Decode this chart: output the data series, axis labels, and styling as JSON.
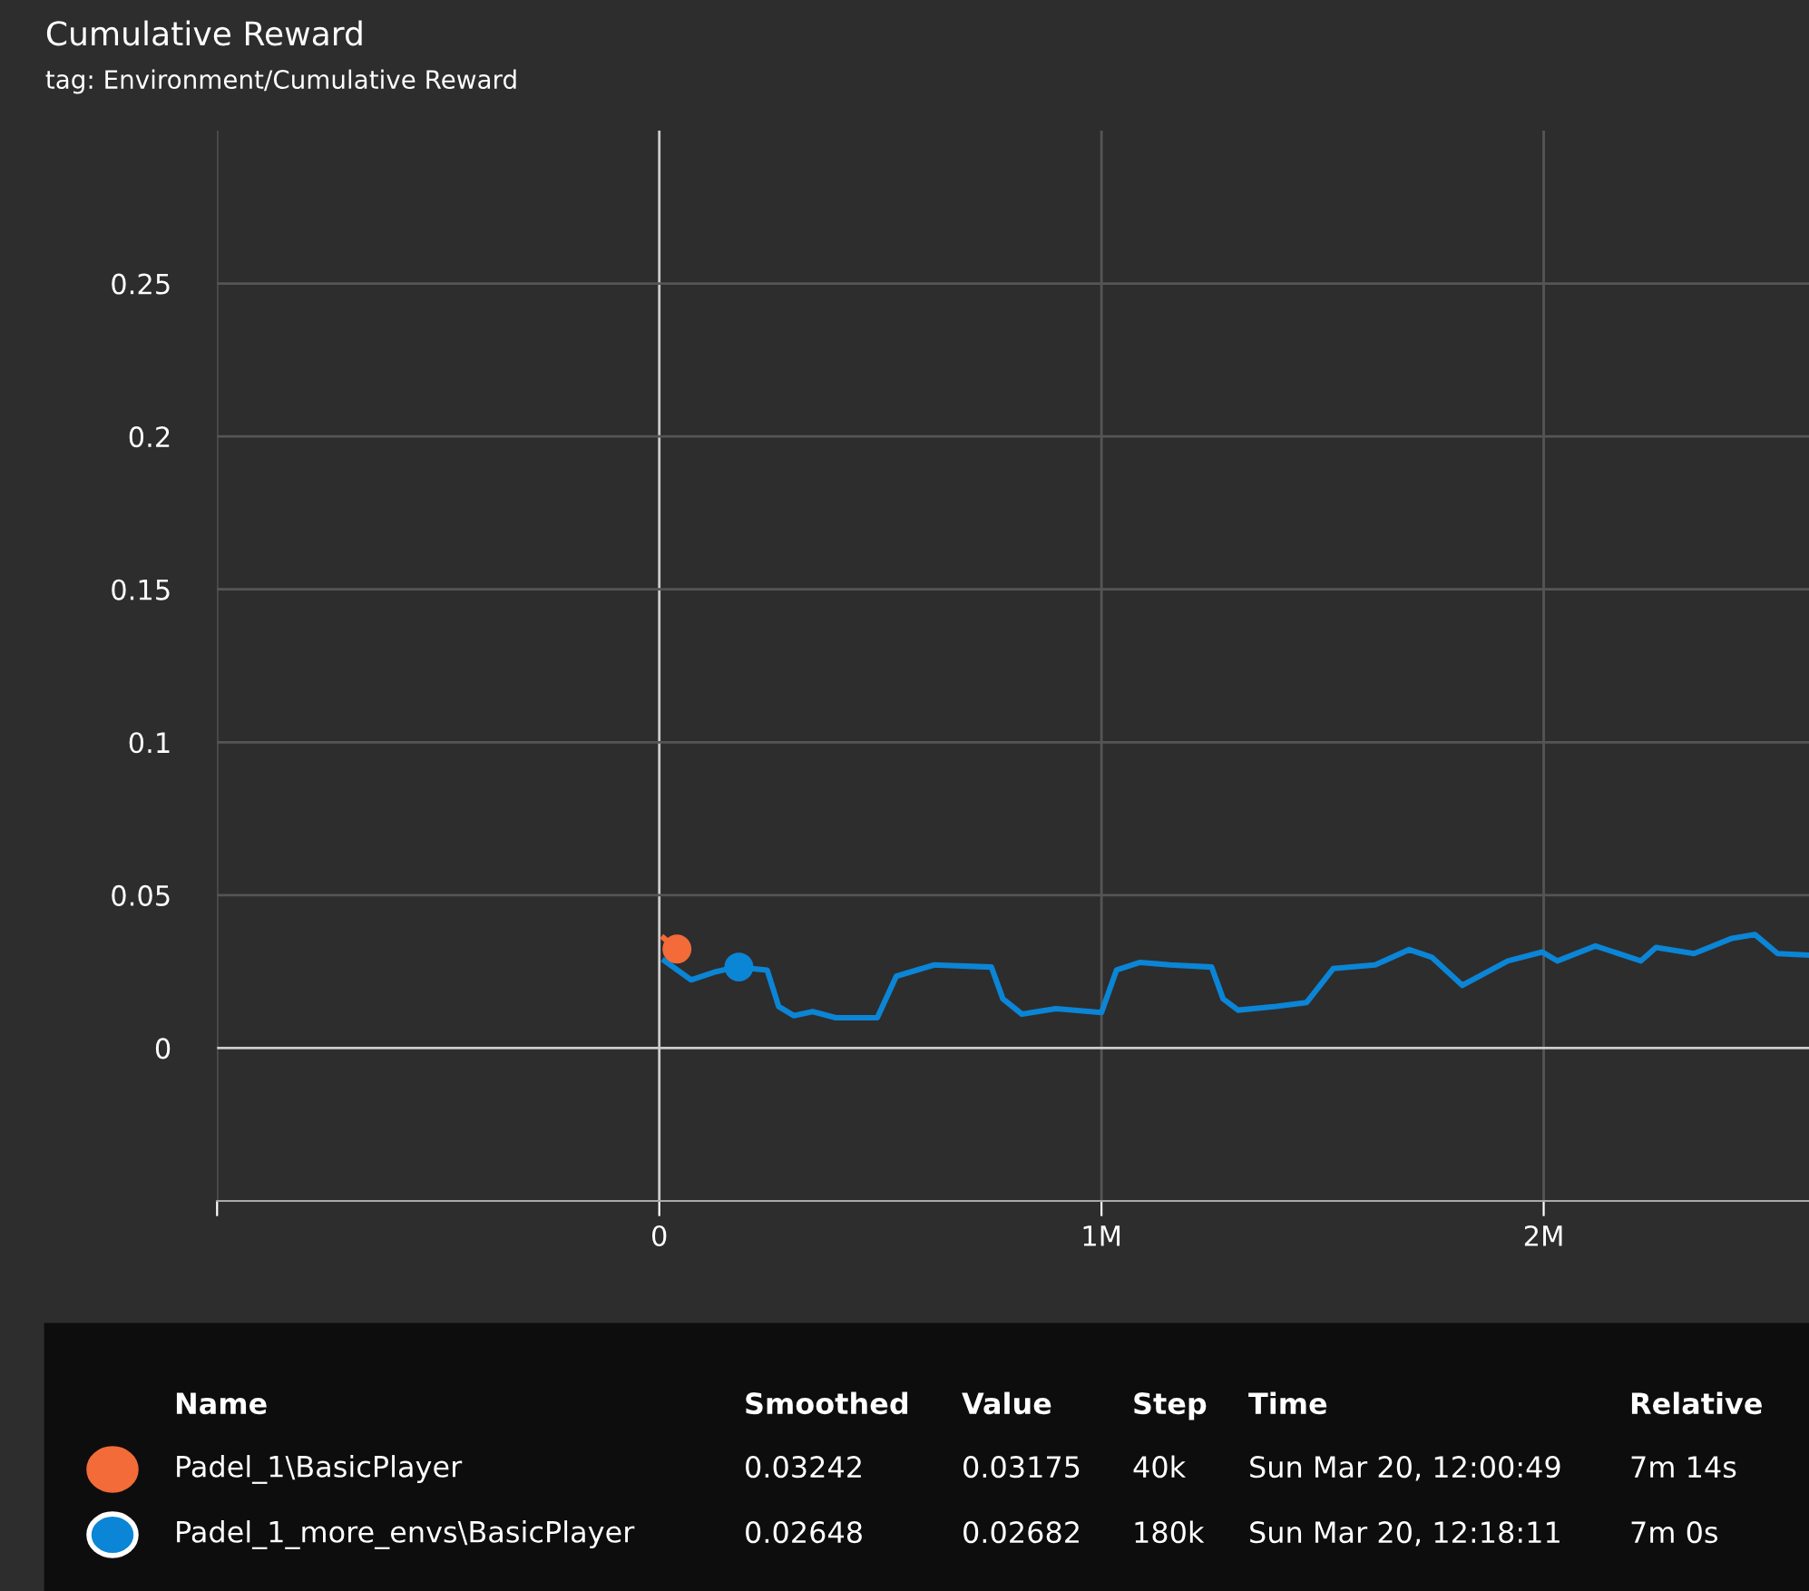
{
  "chart_data": {
    "type": "line",
    "title": "Cumulative Reward",
    "subtitle": "tag: Environment/Cumulative Reward",
    "xlim": [
      -1000000,
      2600000
    ],
    "xticks": [
      {
        "value": -1000000,
        "label": null
      },
      {
        "value": 0,
        "label": "0"
      },
      {
        "value": 1000000,
        "label": "1M"
      },
      {
        "value": 2000000,
        "label": "2M"
      }
    ],
    "ylim": [
      -0.05,
      0.3
    ],
    "yticks": [
      0,
      0.05,
      0.1,
      0.15,
      0.2,
      0.25
    ],
    "grid": true,
    "legend": "bottom",
    "series": [
      {
        "name": "Padel_1\\BasicPlayer",
        "color": "#f26b38",
        "x": [
          10000,
          40000
        ],
        "values": [
          0.036,
          0.0324
        ]
      },
      {
        "name": "Padel_1_more_envs\\BasicPlayer",
        "color": "#0b85d6",
        "x": [
          12000,
          72000,
          124000,
          175000,
          244000,
          270000,
          304000,
          347000,
          399000,
          493000,
          536000,
          622000,
          708000,
          751000,
          777000,
          820000,
          897000,
          1000000,
          1034000,
          1086000,
          1155000,
          1249000,
          1275000,
          1309000,
          1395000,
          1464000,
          1524000,
          1619000,
          1696000,
          1747000,
          1816000,
          1919000,
          1997000,
          2031000,
          2117000,
          2220000,
          2254000,
          2340000,
          2426000,
          2478000,
          2529000,
          2595000
        ],
        "values": [
          0.0285,
          0.0223,
          0.0248,
          0.0265,
          0.0255,
          0.0136,
          0.0106,
          0.0119,
          0.0099,
          0.0099,
          0.0235,
          0.0272,
          0.0267,
          0.0265,
          0.0161,
          0.0111,
          0.0129,
          0.0116,
          0.0255,
          0.028,
          0.0272,
          0.0265,
          0.0161,
          0.0124,
          0.0136,
          0.0149,
          0.026,
          0.0272,
          0.0322,
          0.0297,
          0.0205,
          0.0285,
          0.0314,
          0.0285,
          0.0334,
          0.0285,
          0.0329,
          0.0309,
          0.0359,
          0.0371,
          0.0309,
          0.0304
        ]
      },
      {
        "type": "scatter",
        "color": "#f26b38",
        "x": [
          40000
        ],
        "values": [
          0.0324
        ],
        "marker": "circle"
      },
      {
        "type": "scatter",
        "color": "#0b85d6",
        "x": [
          180000
        ],
        "values": [
          0.0265
        ],
        "marker": "circle"
      }
    ],
    "annotations": [
      "Smoothed",
      "Value",
      "Step",
      "Time",
      "Relative",
      "Name",
      "0.03242",
      "0.03175",
      "40k",
      "Sun Mar 20, 12:00:49",
      "7m 14s",
      "0.02648",
      "0.02682",
      "180k",
      "Sun Mar 20, 12:18:11",
      "7m 0s"
    ]
  }
}
